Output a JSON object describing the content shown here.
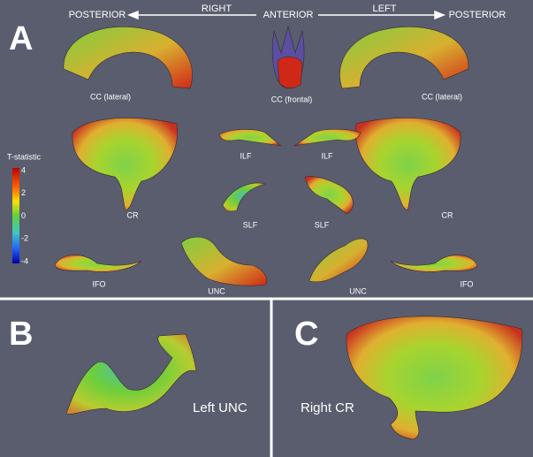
{
  "panel_a": {
    "letter": "A",
    "directions": [
      "POSTERIOR",
      "RIGHT",
      "ANTERIOR",
      "LEFT",
      "POSTERIOR"
    ],
    "structures": [
      "CC (lateral)",
      "CC (frontal)",
      "CC (lateral)",
      "CR",
      "ILF",
      "ILF",
      "CR",
      "SLF",
      "SLF",
      "IFO",
      "UNC",
      "UNC",
      "IFO"
    ],
    "colorbar": {
      "title": "T-statistic",
      "ticks": [
        4,
        2,
        0,
        -2,
        -4
      ]
    }
  },
  "panel_b": {
    "letter": "B",
    "label": "Left UNC"
  },
  "panel_c": {
    "letter": "C",
    "label": "Right CR"
  }
}
